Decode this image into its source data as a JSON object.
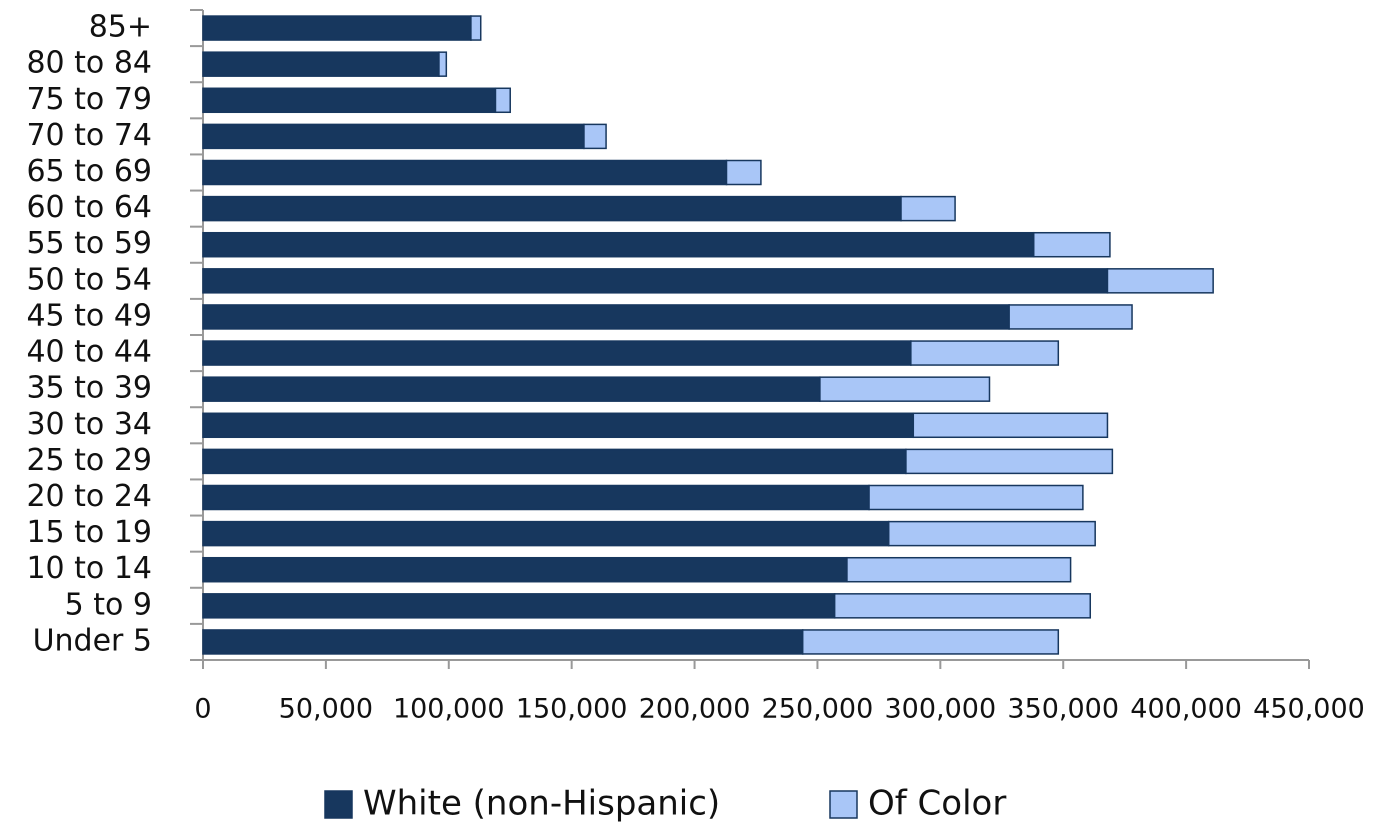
{
  "chart_data": {
    "type": "stacked-barh",
    "categories": [
      "85+",
      "80 to 84",
      "75 to 79",
      "70 to 74",
      "65 to 69",
      "60 to 64",
      "55 to 59",
      "50 to 54",
      "45 to 49",
      "40 to 44",
      "35 to 39",
      "30 to 34",
      "25 to 29",
      "20 to 24",
      "15 to 19",
      "10 to 14",
      "5 to 9",
      "Under 5"
    ],
    "series": [
      {
        "name": "White (non-Hispanic)",
        "color": "#17375e",
        "values": [
          109000,
          96000,
          119000,
          155000,
          213000,
          284000,
          338000,
          368000,
          328000,
          288000,
          251000,
          289000,
          286000,
          271000,
          279000,
          262000,
          257000,
          244000
        ]
      },
      {
        "name": "Of Color",
        "color": "#a9c6f7",
        "values": [
          4000,
          3000,
          6000,
          9000,
          14000,
          22000,
          31000,
          43000,
          50000,
          60000,
          69000,
          79000,
          84000,
          87000,
          84000,
          91000,
          104000,
          104000
        ]
      }
    ],
    "xlim": [
      0,
      450000
    ],
    "xticks": [
      0,
      {
        "value": 50000,
        "label": "50,000"
      },
      {
        "value": 100000,
        "label": "100,000"
      },
      {
        "value": 150000,
        "label": "150,000"
      },
      {
        "value": 200000,
        "label": "200,000"
      },
      {
        "value": 250000,
        "label": "250,000"
      },
      {
        "value": 300000,
        "label": "300,000"
      },
      {
        "value": 350000,
        "label": "350,000"
      },
      {
        "value": 400000,
        "label": "400,000"
      },
      {
        "value": 450000,
        "label": "450,000"
      }
    ],
    "legend": "bottom"
  }
}
